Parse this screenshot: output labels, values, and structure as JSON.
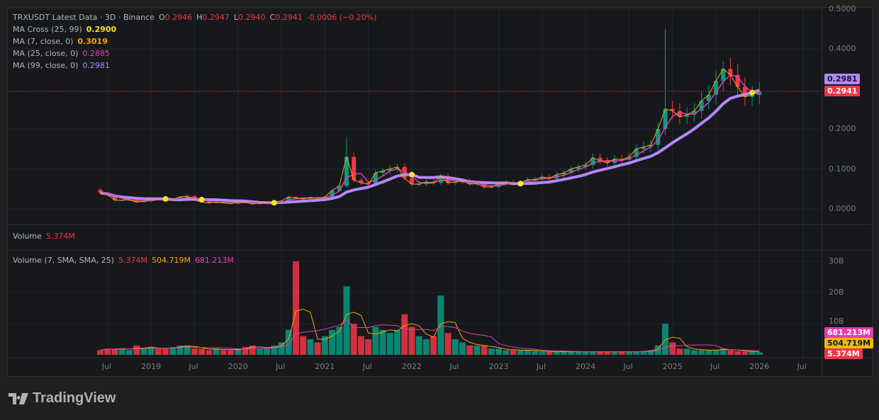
{
  "header": {
    "title": "TRXUSDT Latest Data · 3D · Binance",
    "o_label": "O",
    "o": "0.2946",
    "h_label": "H",
    "h": "0.2947",
    "l_label": "L",
    "l": "0.2940",
    "c_label": "C",
    "c": "0.2941",
    "change": "-0.0006 (−0.20%)"
  },
  "indicators": [
    {
      "label": "MA Cross (25, 99)",
      "value": "0.2900",
      "color": "#f5e52a"
    },
    {
      "label": "MA (7, close, 0)",
      "value": "0.3019",
      "color": "#f7a600"
    },
    {
      "label": "MA (25, close, 0)",
      "value": "0.2885",
      "color": "#e040b0"
    },
    {
      "label": "MA (99, close, 0)",
      "value": "0.2981",
      "color": "#b388ff"
    }
  ],
  "volume_pane": {
    "label": "Volume",
    "value": "5.374M",
    "sma_label": "Volume (7, SMA, SMA, 25)",
    "v1": "5.374M",
    "v2": "504.719M",
    "v3": "681.213M"
  },
  "price_tags": {
    "ma99": "0.2981",
    "last": "0.2941"
  },
  "volume_tags": [
    "681.213M",
    "504.719M",
    "5.374M"
  ],
  "brand": "TradingView",
  "colors": {
    "up": "#089981",
    "down": "#f23645",
    "ma7": "#f7a600",
    "ma25": "#e040b0",
    "ma99": "#b388ff",
    "cross": "#f5e52a"
  },
  "chart_data": {
    "type": "candlestick",
    "price_axis": {
      "ticks": [
        "0.5000",
        "0.4000",
        "0.2000",
        "0.1000",
        "0.0000"
      ],
      "tick_values": [
        0.5,
        0.4,
        0.2,
        0.1,
        0
      ],
      "range": [
        -0.04,
        0.5
      ]
    },
    "volume_axis": {
      "ticks": [
        "30B",
        "20B",
        "10B"
      ],
      "tick_values": [
        30,
        20,
        10
      ],
      "unit": "B"
    },
    "time_axis": {
      "ticks": [
        "Jul",
        "2019",
        "Jul",
        "2020",
        "Jul",
        "2021",
        "Jul",
        "2022",
        "Jul",
        "2023",
        "Jul",
        "2024",
        "Jul",
        "2025",
        "Jul",
        "2026",
        "Jul"
      ],
      "tick_dates": [
        "2018-07",
        "2019-01",
        "2019-07",
        "2020-01",
        "2020-07",
        "2021-01",
        "2021-07",
        "2022-01",
        "2022-07",
        "2023-01",
        "2023-07",
        "2024-01",
        "2024-07",
        "2025-01",
        "2025-07",
        "2026-01",
        "2026-07"
      ]
    },
    "start": "2018-06",
    "first_open": 0.048,
    "closes": [
      0.04,
      0.035,
      0.022,
      0.022,
      0.023,
      0.017,
      0.019,
      0.025,
      0.024,
      0.022,
      0.024,
      0.03,
      0.032,
      0.022,
      0.017,
      0.015,
      0.018,
      0.015,
      0.013,
      0.018,
      0.017,
      0.012,
      0.015,
      0.015,
      0.016,
      0.02,
      0.03,
      0.027,
      0.025,
      0.029,
      0.027,
      0.03,
      0.046,
      0.058,
      0.13,
      0.072,
      0.065,
      0.062,
      0.09,
      0.095,
      0.1,
      0.105,
      0.077,
      0.062,
      0.062,
      0.068,
      0.065,
      0.082,
      0.065,
      0.068,
      0.07,
      0.062,
      0.063,
      0.055,
      0.055,
      0.063,
      0.067,
      0.064,
      0.066,
      0.073,
      0.074,
      0.08,
      0.076,
      0.086,
      0.09,
      0.1,
      0.105,
      0.11,
      0.128,
      0.12,
      0.115,
      0.125,
      0.123,
      0.13,
      0.15,
      0.155,
      0.16,
      0.2,
      0.25,
      0.245,
      0.23,
      0.235,
      0.245,
      0.27,
      0.285,
      0.32,
      0.35,
      0.335,
      0.305,
      0.28,
      0.285,
      0.2941
    ],
    "highs": {
      "2021-04": 0.18,
      "2024-12": 0.45,
      "2025-08": 0.37
    },
    "volumes_billion": [
      1.5,
      2,
      2,
      2,
      1.5,
      3,
      2,
      2.5,
      2,
      2,
      2.5,
      3,
      3,
      2,
      2,
      1.5,
      2,
      1.5,
      1.5,
      2,
      2.5,
      3,
      2,
      2,
      3,
      4,
      8,
      30,
      6,
      5,
      4,
      6,
      8,
      9,
      22,
      10,
      6,
      5,
      9,
      8,
      7,
      8,
      13,
      9,
      6,
      5,
      6,
      19,
      7,
      5,
      4,
      3,
      3,
      3,
      2,
      2,
      1.5,
      1.5,
      1.5,
      1.5,
      1.2,
      1,
      1,
      1,
      1,
      1,
      1,
      1,
      1,
      1,
      1,
      1,
      1,
      1,
      1,
      1.2,
      1.5,
      3,
      10,
      4,
      2,
      2,
      1.5,
      1.5,
      1.5,
      1.5,
      2,
      1.5,
      1.2,
      1,
      1,
      0.8
    ],
    "ma_cross_points": [
      "2019-03",
      "2019-08",
      "2020-06",
      "2022-01",
      "2023-04",
      "2025-12"
    ],
    "last_price": 0.2941
  }
}
